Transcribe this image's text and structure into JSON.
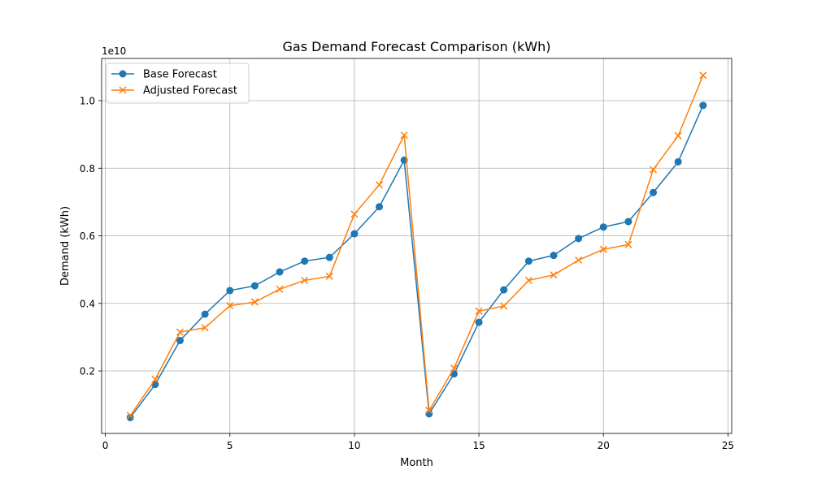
{
  "chart_data": {
    "type": "line",
    "title": "Gas Demand Forecast Comparison (kWh)",
    "xlabel": "Month",
    "ylabel": "Demand (kWh)",
    "y_offset_label": "1e10",
    "xlim": [
      -0.15,
      25.15
    ],
    "ylim": [
      150000000,
      11250000000
    ],
    "x_ticks": [
      0,
      5,
      10,
      15,
      20,
      25
    ],
    "y_ticks": [
      2000000000,
      4000000000,
      6000000000,
      8000000000,
      10000000000
    ],
    "y_tick_labels": [
      "0.2",
      "0.4",
      "0.6",
      "0.8",
      "1.0"
    ],
    "grid": true,
    "legend_position": "top-left",
    "x": [
      1,
      2,
      3,
      4,
      5,
      6,
      7,
      8,
      9,
      10,
      11,
      12,
      13,
      14,
      15,
      16,
      17,
      18,
      19,
      20,
      21,
      22,
      23,
      24
    ],
    "series": [
      {
        "name": "Base Forecast",
        "color": "#1f77b4",
        "marker": "circle",
        "values": [
          620000000,
          1600000000,
          2900000000,
          3680000000,
          4380000000,
          4520000000,
          4930000000,
          5250000000,
          5360000000,
          6060000000,
          6860000000,
          8240000000,
          730000000,
          1910000000,
          3440000000,
          4400000000,
          5250000000,
          5420000000,
          5920000000,
          6260000000,
          6420000000,
          7280000000,
          8190000000,
          9860000000
        ]
      },
      {
        "name": "Adjusted Forecast",
        "color": "#ff7f0e",
        "marker": "x",
        "values": [
          680000000,
          1750000000,
          3150000000,
          3280000000,
          3930000000,
          4040000000,
          4420000000,
          4680000000,
          4800000000,
          6640000000,
          7510000000,
          8980000000,
          830000000,
          2080000000,
          3770000000,
          3920000000,
          4680000000,
          4840000000,
          5280000000,
          5600000000,
          5740000000,
          7960000000,
          8960000000,
          10750000000
        ]
      }
    ]
  }
}
